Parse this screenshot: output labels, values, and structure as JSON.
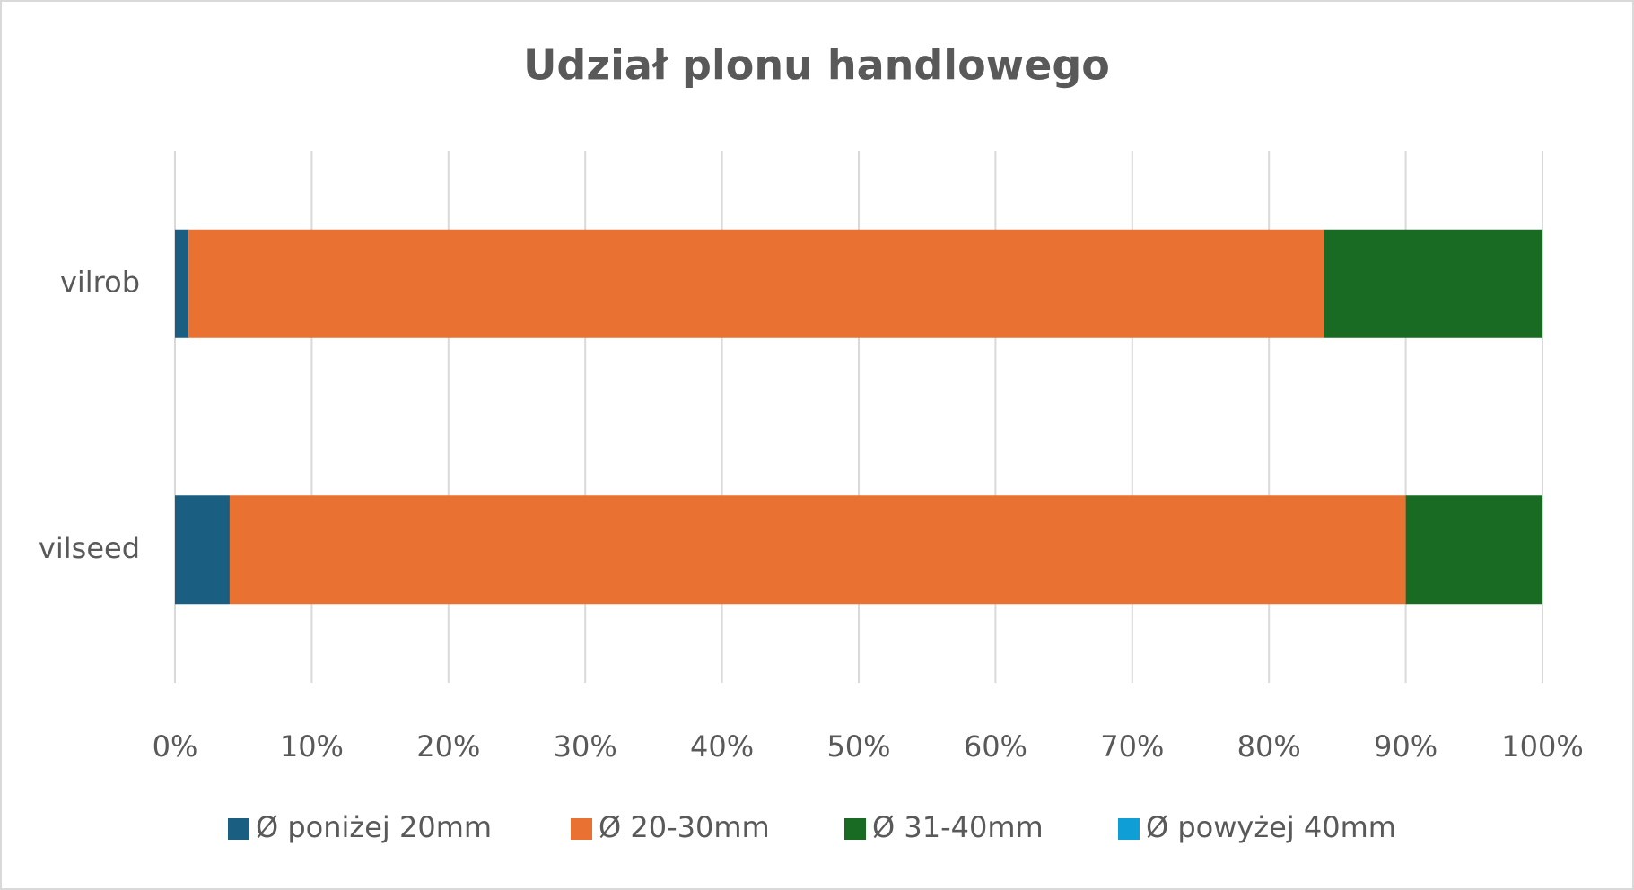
{
  "chart_data": {
    "type": "stacked-bar-horizontal",
    "title": "Udział plonu handlowego",
    "categories": [
      "vilrob",
      "vilseed"
    ],
    "series": [
      {
        "name": "Ø poniżej 20mm",
        "color": "#1a5e82",
        "values": [
          1,
          4
        ]
      },
      {
        "name": "Ø 20-30mm",
        "color": "#e97132",
        "values": [
          83,
          86
        ]
      },
      {
        "name": "Ø 31-40mm",
        "color": "#196b24",
        "values": [
          16,
          10
        ]
      },
      {
        "name": "Ø powyżej 40mm",
        "color": "#0f9ed5",
        "values": [
          0,
          0
        ]
      }
    ],
    "xlim": [
      0,
      100
    ],
    "xticks": [
      {
        "value": 0,
        "label": "0%"
      },
      {
        "value": 10,
        "label": "10%"
      },
      {
        "value": 20,
        "label": "20%"
      },
      {
        "value": 30,
        "label": "30%"
      },
      {
        "value": 40,
        "label": "40%"
      },
      {
        "value": 50,
        "label": "50%"
      },
      {
        "value": 60,
        "label": "60%"
      },
      {
        "value": 70,
        "label": "70%"
      },
      {
        "value": 80,
        "label": "80%"
      },
      {
        "value": 90,
        "label": "90%"
      },
      {
        "value": 100,
        "label": "100%"
      }
    ],
    "grid": true,
    "legend": "bottom"
  }
}
